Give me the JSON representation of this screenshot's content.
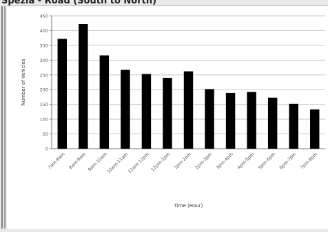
{
  "title": "Spezia - Road (South to North)",
  "chart_data": {
    "type": "bar",
    "title": "Spezia - Road (South to North)",
    "xlabel": "Time (Hour)",
    "ylabel": "Number of Vehicles",
    "ylim": [
      0,
      450
    ],
    "yticks": [
      0,
      50,
      100,
      150,
      200,
      250,
      300,
      350,
      400,
      450
    ],
    "categories": [
      "7am-8am",
      "8am-9am",
      "9am-10am",
      "10am-11am",
      "11am-12pm",
      "12pm-1pm",
      "1pm-2pm",
      "2pm-3pm",
      "3pm-4pm",
      "4pm-5pm",
      "5pm-6pm",
      "6pm-7pm",
      "7pm-8pm"
    ],
    "values": [
      372,
      422,
      316,
      267,
      253,
      240,
      262,
      202,
      189,
      192,
      173,
      152,
      133
    ],
    "bar_color": "#000000",
    "grid": true
  }
}
